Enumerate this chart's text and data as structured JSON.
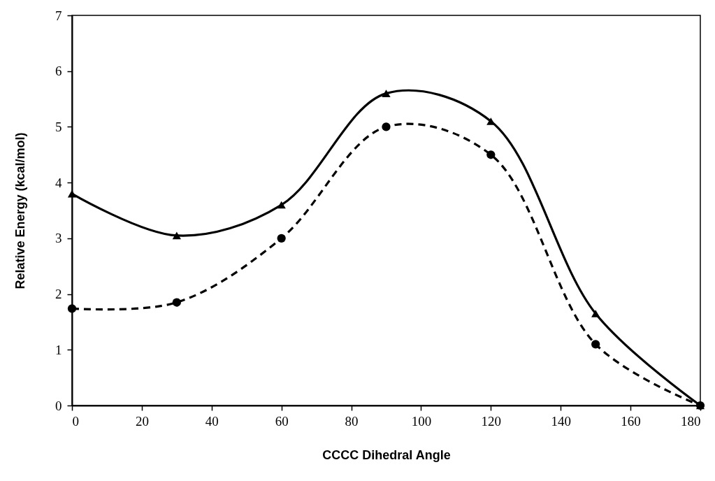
{
  "chart_data": {
    "type": "line",
    "xlabel": "CCCC Dihedral Angle",
    "ylabel": "Relative Energy (kcal/mol)",
    "x": [
      0,
      30,
      60,
      90,
      120,
      150,
      180
    ],
    "series": [
      {
        "color": "#000000",
        "marker": "triangle",
        "line_style": "solid",
        "values": [
          3.8,
          3.05,
          3.6,
          5.6,
          5.1,
          1.65,
          0
        ]
      },
      {
        "color": "#000000",
        "marker": "circle",
        "line_style": "dashed",
        "values": [
          1.74,
          1.85,
          3.0,
          5.0,
          4.5,
          1.1,
          0
        ]
      }
    ],
    "xlim": [
      0,
      180
    ],
    "xticks": [
      0,
      20,
      40,
      60,
      80,
      100,
      120,
      140,
      160,
      180
    ],
    "ylim": [
      0,
      7
    ],
    "yticks": [
      0,
      1,
      2,
      3,
      4,
      5,
      6,
      7
    ]
  }
}
